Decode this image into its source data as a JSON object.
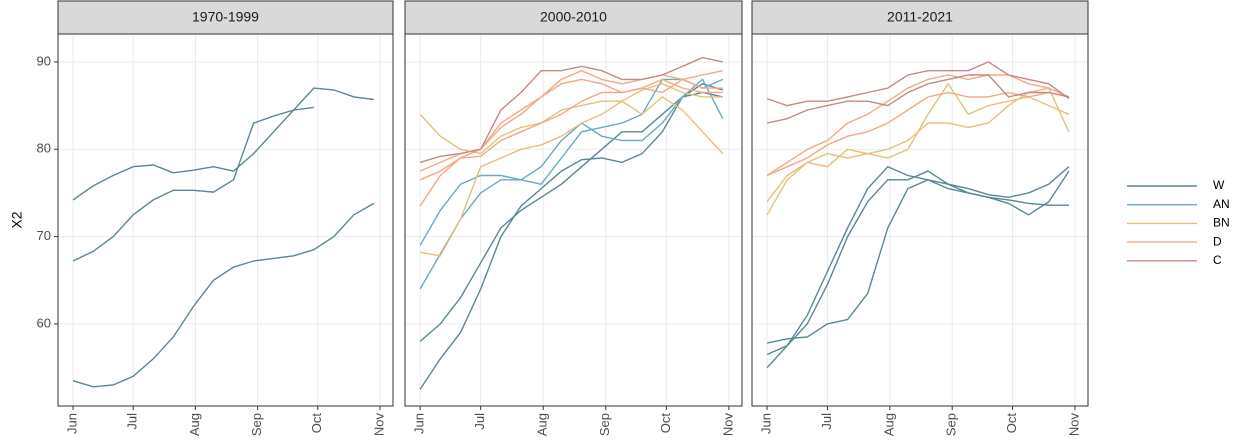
{
  "chart_data": [
    {
      "type": "line",
      "title": "1970-1999",
      "y_label": "X2",
      "x": [
        152,
        162,
        172,
        182,
        192,
        202,
        212,
        222,
        232,
        242,
        252,
        262,
        272,
        282,
        292,
        302
      ],
      "xlim": [
        144.5,
        311.5
      ],
      "ylim": [
        50.6,
        93.2
      ],
      "xticks": [
        {
          "value": 152,
          "label": "Jun"
        },
        {
          "value": 182,
          "label": "Jul"
        },
        {
          "value": 213,
          "label": "Aug"
        },
        {
          "value": 244,
          "label": "Sep"
        },
        {
          "value": 274,
          "label": "Oct"
        },
        {
          "value": 305,
          "label": "Nov"
        }
      ],
      "yticks": [
        60,
        70,
        80,
        90
      ],
      "grid": true,
      "series": [
        {
          "name": "W",
          "color": "#5a8795",
          "values": [
            74.2,
            75.8,
            77,
            78,
            78.2,
            77.3,
            77.6,
            78,
            77.5,
            79.5,
            82,
            84.5,
            87,
            86.8,
            86,
            85.7
          ]
        },
        {
          "name": "W",
          "color": "#5a8795",
          "values": [
            67.2,
            68.3,
            70,
            72.5,
            74.2,
            75.3,
            75.3,
            75.1,
            76.5,
            83,
            83.8,
            84.5,
            84.8,
            null,
            null,
            null
          ]
        },
        {
          "name": "W",
          "color": "#5a8795",
          "values": [
            53.5,
            52.8,
            53,
            54,
            56,
            58.5,
            62,
            65,
            66.5,
            67.2,
            67.5,
            67.8,
            68.5,
            70,
            72.5,
            73.8
          ]
        }
      ]
    },
    {
      "type": "line",
      "title": "2000-2010",
      "x": [
        152,
        162,
        172,
        182,
        192,
        202,
        212,
        222,
        232,
        242,
        252,
        262,
        272,
        282,
        292,
        302
      ],
      "xlim": [
        144.5,
        311.5
      ],
      "ylim": [
        50.6,
        93.2
      ],
      "xticks": [
        {
          "value": 152,
          "label": "Jun"
        },
        {
          "value": 182,
          "label": "Jul"
        },
        {
          "value": 213,
          "label": "Aug"
        },
        {
          "value": 244,
          "label": "Sep"
        },
        {
          "value": 274,
          "label": "Oct"
        },
        {
          "value": 305,
          "label": "Nov"
        }
      ],
      "yticks": [
        60,
        70,
        80,
        90
      ],
      "grid": true,
      "series": [
        {
          "name": "W",
          "color": "#5a8795",
          "values": [
            52.5,
            56,
            59,
            64,
            70,
            73.5,
            75.5,
            77.5,
            78.8,
            79,
            78.5,
            79.5,
            82,
            86,
            87.5,
            86.8
          ]
        },
        {
          "name": "W",
          "color": "#5a8795",
          "values": [
            58,
            60,
            63,
            67,
            71,
            73,
            74.5,
            76,
            78,
            80,
            82,
            82,
            84,
            86,
            86.5,
            86
          ]
        },
        {
          "name": "AN",
          "color": "#6aaac3",
          "values": [
            64,
            68,
            72,
            75,
            76.5,
            76.5,
            76,
            79,
            82,
            82.5,
            83,
            84,
            88,
            88,
            87,
            88
          ]
        },
        {
          "name": "AN",
          "color": "#6aaac3",
          "values": [
            69,
            73,
            76,
            77,
            77,
            76.5,
            78,
            81,
            83,
            81.5,
            81,
            81,
            83,
            86,
            88,
            83.5
          ]
        },
        {
          "name": "BN",
          "color": "#e6c07b",
          "values": [
            68.2,
            67.8,
            72,
            78,
            79,
            80,
            80.5,
            81.5,
            83,
            84,
            85.5,
            86.8,
            87.5,
            86.5,
            86,
            86
          ]
        },
        {
          "name": "BN",
          "color": "#e6c07b",
          "values": [
            84,
            81.5,
            80,
            79.5,
            81.5,
            82.5,
            83,
            84.5,
            85,
            85.5,
            85.5,
            84,
            86,
            84.5,
            82,
            79.5
          ]
        },
        {
          "name": "D",
          "color": "#f6a784",
          "values": [
            73.5,
            77,
            79,
            79.2,
            81,
            82,
            83,
            84,
            85.5,
            86.5,
            86.5,
            87,
            86.5,
            88,
            88.5,
            89
          ]
        },
        {
          "name": "D",
          "color": "#f6a784",
          "values": [
            76.5,
            77.5,
            79,
            80,
            82.5,
            84,
            86,
            87.5,
            88,
            87.5,
            86.5,
            87,
            88,
            87,
            86.5,
            86.5
          ]
        },
        {
          "name": "D",
          "color": "#f6a784",
          "values": [
            77.5,
            78.5,
            79.5,
            80,
            83,
            84.5,
            86,
            88,
            89,
            88,
            87.5,
            88,
            88.5,
            88,
            87,
            87
          ]
        },
        {
          "name": "C",
          "color": "#c48a85",
          "values": [
            78.5,
            79.2,
            79.5,
            80,
            84.5,
            86.5,
            89,
            89,
            89.5,
            89,
            88,
            88,
            88.5,
            89.5,
            90.5,
            90
          ]
        }
      ]
    },
    {
      "type": "line",
      "title": "2011-2021",
      "x": [
        152,
        162,
        172,
        182,
        192,
        202,
        212,
        222,
        232,
        242,
        252,
        262,
        272,
        282,
        292,
        302
      ],
      "xlim": [
        144.5,
        311.5
      ],
      "ylim": [
        50.6,
        93.2
      ],
      "xticks": [
        {
          "value": 152,
          "label": "Jun"
        },
        {
          "value": 182,
          "label": "Jul"
        },
        {
          "value": 213,
          "label": "Aug"
        },
        {
          "value": 244,
          "label": "Sep"
        },
        {
          "value": 274,
          "label": "Oct"
        },
        {
          "value": 305,
          "label": "Nov"
        }
      ],
      "yticks": [
        60,
        70,
        80,
        90
      ],
      "grid": true,
      "series": [
        {
          "name": "W",
          "color": "#5a8795",
          "values": [
            55,
            57.5,
            61,
            66,
            71,
            75.5,
            78,
            77,
            76.5,
            75.5,
            75,
            74.5,
            74.2,
            73.8,
            73.6,
            73.6
          ]
        },
        {
          "name": "W",
          "color": "#5a8795",
          "values": [
            56.5,
            57.5,
            60,
            64.5,
            70,
            74,
            76.5,
            76.5,
            77.5,
            76,
            75,
            74.5,
            73.8,
            72.5,
            74,
            77.5
          ]
        },
        {
          "name": "W",
          "color": "#5a8795",
          "values": [
            57.8,
            58.3,
            58.5,
            60,
            60.5,
            63.5,
            71,
            75.5,
            76.5,
            76,
            75.5,
            74.8,
            74.5,
            75,
            76,
            78
          ]
        },
        {
          "name": "BN",
          "color": "#e6c07b",
          "values": [
            72.5,
            76.5,
            78.5,
            78,
            80,
            79.5,
            80,
            81,
            83,
            83,
            82.5,
            83,
            85,
            86.5,
            87,
            82
          ]
        },
        {
          "name": "BN",
          "color": "#e6c07b",
          "values": [
            74,
            77,
            78.5,
            79.5,
            79,
            79.5,
            79,
            80,
            84,
            87.5,
            84,
            85,
            85.5,
            86,
            85,
            84
          ]
        },
        {
          "name": "D",
          "color": "#f6a784",
          "values": [
            77,
            78.5,
            80,
            81,
            83,
            84,
            85.5,
            87,
            88,
            88.5,
            88,
            88.5,
            88.5,
            87.5,
            87,
            86
          ]
        },
        {
          "name": "D",
          "color": "#f6a784",
          "values": [
            77,
            78,
            79,
            80.5,
            81.5,
            82,
            83,
            84.5,
            86,
            86.5,
            86,
            86,
            86.5,
            86,
            86.5,
            86
          ]
        },
        {
          "name": "C",
          "color": "#c48a85",
          "values": [
            85.8,
            85,
            85.5,
            85.5,
            86,
            86.5,
            87,
            88.5,
            89,
            89,
            89,
            90,
            88.5,
            88,
            87.5,
            85.8
          ]
        },
        {
          "name": "C",
          "color": "#c48a85",
          "values": [
            83,
            83.5,
            84.5,
            85,
            85.5,
            85.5,
            85,
            86.5,
            87.5,
            88,
            88.5,
            88.5,
            86,
            86.5,
            86.5,
            86
          ]
        }
      ]
    }
  ],
  "legend": [
    {
      "name": "W",
      "color": "#5a8795"
    },
    {
      "name": "AN",
      "color": "#6aaac3"
    },
    {
      "name": "BN",
      "color": "#e6c07b"
    },
    {
      "name": "D",
      "color": "#f6a784"
    },
    {
      "name": "C",
      "color": "#c48a85"
    }
  ]
}
